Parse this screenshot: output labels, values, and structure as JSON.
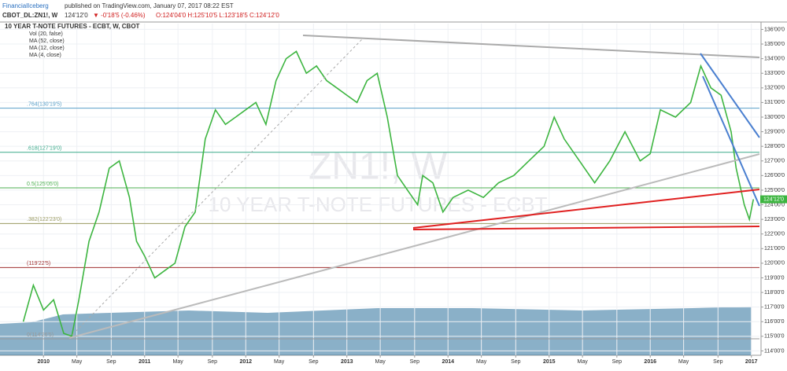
{
  "header": {
    "author": "FinancialIceberg",
    "published": "published on TradingView.com, January 07, 2017 08:22 EST",
    "symbol": "CBOT_DL:ZN1!, W",
    "last": "124'12'0",
    "change": "▼ -0'18'5 (-0.46%)",
    "ohlc": "O:124'04'0 H:125'10'5 L:123'18'5 C:124'12'0"
  },
  "chart_data": {
    "type": "line",
    "title": "10 YEAR T-NOTE FUTURES - ECBT, W, CBOT",
    "watermark": "ZN1!, W",
    "watermark_sub": "10 YEAR T-NOTE FUTURES - ECBT",
    "indicators": [
      "Vol (20, false)",
      "MA (52, close)",
      "MA (12, close)",
      "MA (4, close)"
    ],
    "last_price": {
      "value": 124.375,
      "label": "124'12'0"
    },
    "x": [
      2009.8,
      2009.9,
      2010.0,
      2010.1,
      2010.2,
      2010.28,
      2010.35,
      2010.45,
      2010.55,
      2010.65,
      2010.75,
      2010.85,
      2010.92,
      2011.0,
      2011.1,
      2011.2,
      2011.3,
      2011.4,
      2011.5,
      2011.6,
      2011.7,
      2011.8,
      2011.9,
      2012.0,
      2012.1,
      2012.2,
      2012.3,
      2012.4,
      2012.5,
      2012.6,
      2012.7,
      2012.8,
      2012.9,
      2013.0,
      2013.1,
      2013.2,
      2013.3,
      2013.4,
      2013.5,
      2013.6,
      2013.7,
      2013.75,
      2013.85,
      2013.95,
      2014.05,
      2014.2,
      2014.35,
      2014.5,
      2014.65,
      2014.8,
      2014.95,
      2015.05,
      2015.15,
      2015.3,
      2015.45,
      2015.6,
      2015.75,
      2015.9,
      2016.0,
      2016.1,
      2016.25,
      2016.4,
      2016.5,
      2016.6,
      2016.7,
      2016.8,
      2016.85,
      2016.93,
      2016.98,
      2017.02
    ],
    "series": [
      {
        "color": "#3db540",
        "values": [
          116.0,
          118.5,
          116.8,
          117.5,
          115.2,
          115.0,
          117.5,
          121.5,
          123.5,
          126.5,
          127.0,
          124.5,
          121.5,
          120.5,
          119.0,
          119.5,
          120.0,
          122.5,
          123.5,
          128.5,
          130.5,
          129.5,
          130.0,
          130.5,
          131.0,
          129.5,
          132.5,
          134.0,
          134.5,
          133.0,
          133.5,
          132.5,
          132.0,
          131.5,
          131.0,
          132.5,
          133.0,
          130.0,
          126.0,
          125.0,
          124.0,
          126.0,
          125.5,
          123.5,
          124.5,
          125.0,
          124.5,
          125.5,
          126.0,
          127.0,
          128.0,
          130.0,
          128.5,
          127.0,
          125.5,
          127.0,
          129.0,
          127.0,
          127.5,
          130.5,
          130.0,
          131.0,
          133.5,
          132.0,
          131.5,
          129.0,
          126.5,
          124.0,
          123.0,
          124.375
        ]
      }
    ],
    "levels": [
      {
        "label": ".764(130'19'5)",
        "value": 130.609,
        "color": "#5aa0c8"
      },
      {
        "label": ".618(127'19'0)",
        "value": 127.594,
        "color": "#3aaa8a"
      },
      {
        "label": "0.5(125'05'0)",
        "value": 125.156,
        "color": "#4caf50"
      },
      {
        "label": ".382(122'23'0)",
        "value": 122.719,
        "color": "#9a9a60"
      },
      {
        "label": "(119'22'5)",
        "value": 119.703,
        "color": "#a03030"
      },
      {
        "label": "0(114'26'5)",
        "value": 114.828,
        "color": "#999999"
      }
    ],
    "xlim": [
      2009.57,
      2017.08
    ],
    "ylim": [
      113.7,
      136.4
    ],
    "grid": true,
    "xticks": [
      {
        "value": 2010,
        "label": "2010"
      },
      {
        "value": 2010.33,
        "label": "May"
      },
      {
        "value": 2010.67,
        "label": "Sep"
      },
      {
        "value": 2011,
        "label": "2011"
      },
      {
        "value": 2011.33,
        "label": "May"
      },
      {
        "value": 2011.67,
        "label": "Sep"
      },
      {
        "value": 2012,
        "label": "2012"
      },
      {
        "value": 2012.33,
        "label": "May"
      },
      {
        "value": 2012.67,
        "label": "Sep"
      },
      {
        "value": 2013,
        "label": "2013"
      },
      {
        "value": 2013.33,
        "label": "May"
      },
      {
        "value": 2013.67,
        "label": "Sep"
      },
      {
        "value": 2014,
        "label": "2014"
      },
      {
        "value": 2014.33,
        "label": "May"
      },
      {
        "value": 2014.67,
        "label": "Sep"
      },
      {
        "value": 2015,
        "label": "2015"
      },
      {
        "value": 2015.33,
        "label": "May"
      },
      {
        "value": 2015.67,
        "label": "Sep"
      },
      {
        "value": 2016,
        "label": "2016"
      },
      {
        "value": 2016.33,
        "label": "May"
      },
      {
        "value": 2016.67,
        "label": "Sep"
      },
      {
        "value": 2017,
        "label": "2017"
      }
    ],
    "yticks": [
      {
        "value": 114,
        "label": "114'00'0"
      },
      {
        "value": 115,
        "label": "115'00'0"
      },
      {
        "value": 116,
        "label": "116'00'0"
      },
      {
        "value": 117,
        "label": "117'00'0"
      },
      {
        "value": 118,
        "label": "118'00'0"
      },
      {
        "value": 119,
        "label": "119'00'0"
      },
      {
        "value": 120,
        "label": "120'00'0"
      },
      {
        "value": 121,
        "label": "121'00'0"
      },
      {
        "value": 122,
        "label": "122'00'0"
      },
      {
        "value": 123,
        "label": "123'00'0"
      },
      {
        "value": 124,
        "label": "124'00'0"
      },
      {
        "value": 125,
        "label": "125'00'0"
      },
      {
        "value": 126,
        "label": "126'00'0"
      },
      {
        "value": 127,
        "label": "127'00'0"
      },
      {
        "value": 128,
        "label": "128'00'0"
      },
      {
        "value": 129,
        "label": "129'00'0"
      },
      {
        "value": 130,
        "label": "130'00'0"
      },
      {
        "value": 131,
        "label": "131'00'0"
      },
      {
        "value": 132,
        "label": "132'00'0"
      },
      {
        "value": 133,
        "label": "133'00'0"
      },
      {
        "value": 134,
        "label": "134'00'0"
      },
      {
        "value": 135,
        "label": "135'00'0"
      },
      {
        "value": 136,
        "label": "136'00'0"
      }
    ]
  }
}
